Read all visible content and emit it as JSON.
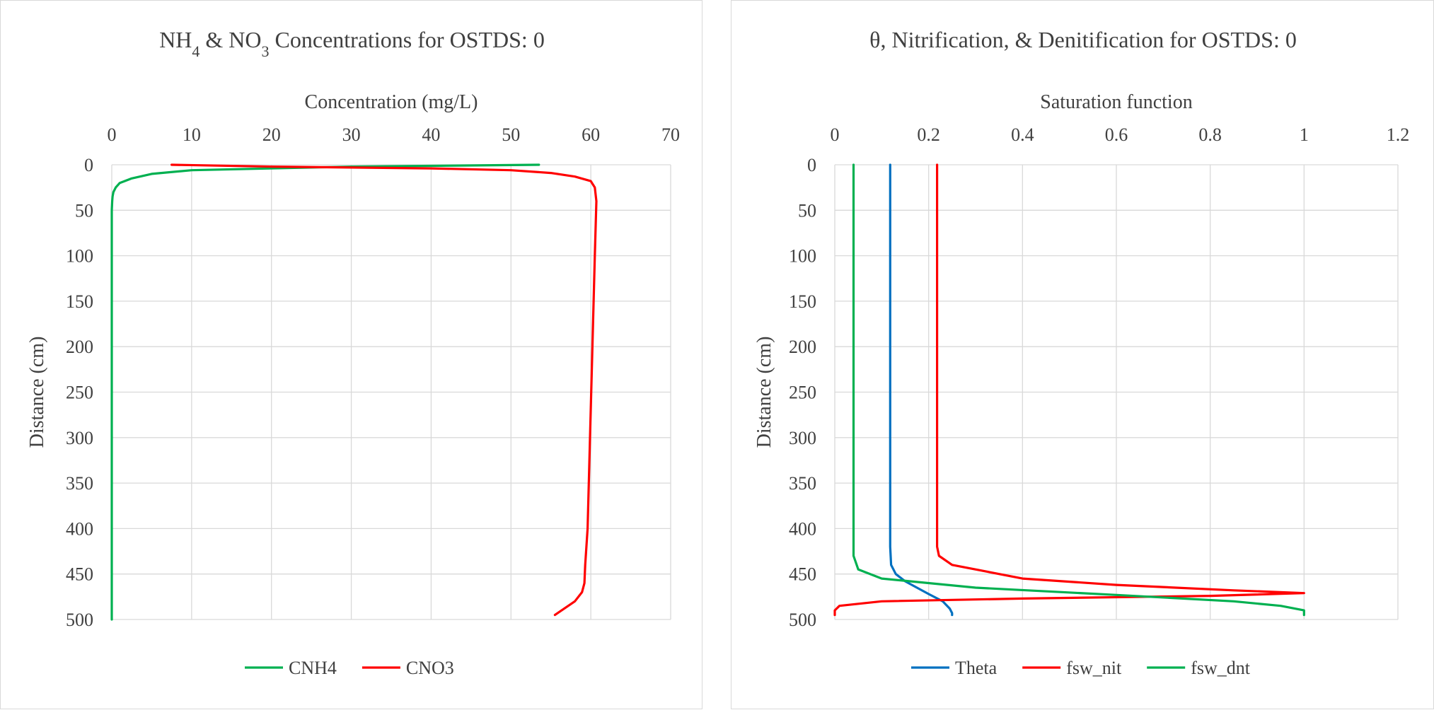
{
  "chart_data": [
    {
      "type": "line",
      "title_parts": [
        {
          "text": "NH"
        },
        {
          "text": "4",
          "sub": true
        },
        {
          "text": " & NO"
        },
        {
          "text": "3",
          "sub": true
        },
        {
          "text": " Concentrations for OSTDS: 0"
        }
      ],
      "xlabel": "Concentration (mg/L)",
      "ylabel": "Distance (cm)",
      "xlim": [
        0,
        70
      ],
      "ylim": [
        0,
        500
      ],
      "y_inverted": true,
      "x_axis_position": "top",
      "xticks": [
        "0",
        "10",
        "20",
        "30",
        "40",
        "50",
        "60",
        "70"
      ],
      "yticks": [
        "0",
        "50",
        "100",
        "150",
        "200",
        "250",
        "300",
        "350",
        "400",
        "450",
        "500"
      ],
      "grid": true,
      "legend_position": "bottom",
      "series": [
        {
          "name": "CNH4",
          "color": "#00B050",
          "x": [
            53.5,
            30,
            10,
            5,
            2.5,
            1,
            0.5,
            0.2,
            0.1,
            0.05,
            0,
            0,
            0,
            0
          ],
          "y": [
            0,
            2,
            6,
            10,
            15,
            20,
            25,
            30,
            35,
            40,
            50,
            200,
            400,
            500
          ]
        },
        {
          "name": "CNO3",
          "color": "#FF0000",
          "x": [
            7.5,
            20,
            40,
            50,
            55,
            58,
            60,
            60.5,
            60.7,
            60.5,
            60.2,
            59.9,
            59.6,
            59.3,
            59.2,
            58.9,
            58,
            55.5
          ],
          "y": [
            0,
            2,
            4,
            6,
            9,
            13,
            18,
            25,
            40,
            100,
            200,
            300,
            400,
            440,
            460,
            470,
            480,
            495
          ]
        }
      ]
    },
    {
      "type": "line",
      "title_parts": [
        {
          "text": "θ, Nitrification, & Denitification for OSTDS: 0"
        }
      ],
      "xlabel": "Saturation function",
      "ylabel": "Distance (cm)",
      "xlim": [
        0,
        1.2
      ],
      "ylim": [
        0,
        500
      ],
      "y_inverted": true,
      "x_axis_position": "top",
      "xticks": [
        "0",
        "0.2",
        "0.4",
        "0.6",
        "0.8",
        "1",
        "1.2"
      ],
      "yticks": [
        "0",
        "50",
        "100",
        "150",
        "200",
        "250",
        "300",
        "350",
        "400",
        "450",
        "500"
      ],
      "grid": true,
      "legend_position": "bottom",
      "series": [
        {
          "name": "Theta",
          "color": "#0070C0",
          "x": [
            0.118,
            0.118,
            0.12,
            0.13,
            0.15,
            0.175,
            0.2,
            0.23,
            0.245,
            0.25,
            0.25
          ],
          "y": [
            0,
            420,
            440,
            450,
            458,
            465,
            472,
            480,
            488,
            493,
            495
          ]
        },
        {
          "name": "fsw_nit",
          "color": "#FF0000",
          "x": [
            0.218,
            0.218,
            0.222,
            0.25,
            0.4,
            0.6,
            0.85,
            1.0,
            0.8,
            0.4,
            0.1,
            0.01,
            0.0,
            0.0
          ],
          "y": [
            0,
            420,
            430,
            440,
            455,
            462,
            468,
            471,
            474,
            477,
            480,
            485,
            490,
            495
          ]
        },
        {
          "name": "fsw_dnt",
          "color": "#00B050",
          "x": [
            0.04,
            0.04,
            0.05,
            0.1,
            0.3,
            0.6,
            0.85,
            0.95,
            1.0,
            1.0
          ],
          "y": [
            0,
            430,
            445,
            455,
            465,
            473,
            480,
            485,
            490,
            495
          ]
        }
      ]
    }
  ]
}
